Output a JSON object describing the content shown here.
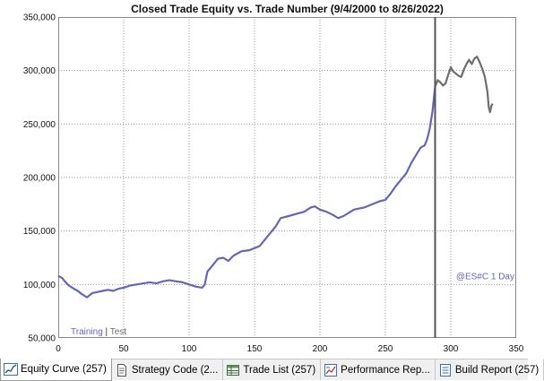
{
  "chart_data": {
    "type": "line",
    "title": "Closed Trade Equity vs. Trade Number (9/4/2000 to 8/26/2022)",
    "xlabel": "",
    "ylabel": "",
    "xlim": [
      0,
      350
    ],
    "ylim": [
      50000,
      350000
    ],
    "x_ticks": [
      "0",
      "50",
      "100",
      "150",
      "200",
      "250",
      "300",
      "350"
    ],
    "y_ticks": [
      "50,000",
      "100,000",
      "150,000",
      "200,000",
      "250,000",
      "300,000",
      "350,000"
    ],
    "grid": true,
    "split_trade": 288,
    "legend": {
      "training": "Training",
      "separator": "|",
      "test": "Test"
    },
    "symbol_label": "@ES#C 1 Day",
    "series": [
      {
        "name": "Training",
        "color": "#6466b8",
        "points": [
          [
            0,
            108000
          ],
          [
            3,
            106000
          ],
          [
            5,
            103000
          ],
          [
            8,
            99000
          ],
          [
            12,
            96000
          ],
          [
            15,
            94000
          ],
          [
            18,
            91000
          ],
          [
            22,
            88000
          ],
          [
            26,
            92000
          ],
          [
            30,
            93000
          ],
          [
            34,
            94000
          ],
          [
            38,
            95000
          ],
          [
            42,
            94000
          ],
          [
            46,
            96000
          ],
          [
            50,
            97000
          ],
          [
            55,
            99000
          ],
          [
            60,
            100000
          ],
          [
            65,
            101000
          ],
          [
            70,
            102000
          ],
          [
            75,
            101000
          ],
          [
            80,
            103000
          ],
          [
            85,
            104000
          ],
          [
            90,
            103000
          ],
          [
            95,
            102000
          ],
          [
            100,
            100000
          ],
          [
            105,
            98000
          ],
          [
            110,
            97000
          ],
          [
            112,
            100000
          ],
          [
            114,
            112000
          ],
          [
            118,
            118000
          ],
          [
            122,
            124000
          ],
          [
            126,
            125000
          ],
          [
            130,
            122000
          ],
          [
            134,
            127000
          ],
          [
            140,
            131000
          ],
          [
            146,
            132000
          ],
          [
            150,
            134000
          ],
          [
            154,
            136000
          ],
          [
            160,
            145000
          ],
          [
            166,
            154000
          ],
          [
            170,
            162000
          ],
          [
            176,
            164000
          ],
          [
            182,
            166000
          ],
          [
            188,
            168000
          ],
          [
            193,
            172000
          ],
          [
            196,
            173000
          ],
          [
            200,
            170000
          ],
          [
            205,
            168000
          ],
          [
            210,
            165000
          ],
          [
            214,
            162000
          ],
          [
            218,
            164000
          ],
          [
            222,
            167000
          ],
          [
            226,
            170000
          ],
          [
            230,
            171000
          ],
          [
            234,
            172000
          ],
          [
            238,
            174000
          ],
          [
            242,
            176000
          ],
          [
            246,
            178000
          ],
          [
            250,
            179000
          ],
          [
            254,
            185000
          ],
          [
            258,
            192000
          ],
          [
            262,
            198000
          ],
          [
            266,
            204000
          ],
          [
            270,
            214000
          ],
          [
            274,
            222000
          ],
          [
            277,
            228000
          ],
          [
            280,
            230000
          ],
          [
            282,
            236000
          ],
          [
            284,
            246000
          ],
          [
            286,
            262000
          ],
          [
            288,
            285000
          ]
        ]
      },
      {
        "name": "Test",
        "color": "#6e6e6e",
        "points": [
          [
            288,
            285000
          ],
          [
            290,
            291000
          ],
          [
            292,
            289000
          ],
          [
            294,
            286000
          ],
          [
            296,
            288000
          ],
          [
            298,
            296000
          ],
          [
            300,
            303000
          ],
          [
            302,
            299000
          ],
          [
            304,
            297000
          ],
          [
            306,
            295000
          ],
          [
            308,
            294000
          ],
          [
            310,
            301000
          ],
          [
            312,
            306000
          ],
          [
            314,
            310000
          ],
          [
            316,
            306000
          ],
          [
            318,
            311000
          ],
          [
            320,
            313000
          ],
          [
            322,
            308000
          ],
          [
            324,
            302000
          ],
          [
            326,
            294000
          ],
          [
            328,
            280000
          ],
          [
            329,
            266000
          ],
          [
            330,
            261000
          ],
          [
            331,
            267000
          ],
          [
            332,
            269000
          ]
        ]
      }
    ]
  },
  "tabs": [
    {
      "label": "Equity Curve (257)",
      "icon": "equity-curve-icon",
      "active": true
    },
    {
      "label": "Strategy Code (2...",
      "icon": "document-icon",
      "active": false
    },
    {
      "label": "Trade List (257)",
      "icon": "table-icon",
      "active": false
    },
    {
      "label": "Performance Rep...",
      "icon": "report-chart-icon",
      "active": false
    },
    {
      "label": "Build Report (257)",
      "icon": "list-icon",
      "active": false
    }
  ]
}
